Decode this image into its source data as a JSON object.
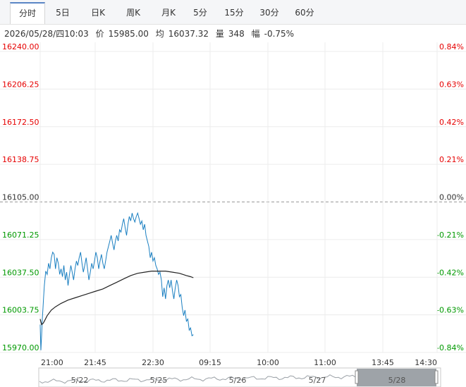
{
  "tabs": [
    {
      "label": "分时",
      "active": true
    },
    {
      "label": "5日",
      "active": false
    },
    {
      "label": "日K",
      "active": false
    },
    {
      "label": "周K",
      "active": false
    },
    {
      "label": "月K",
      "active": false
    },
    {
      "label": "5分",
      "active": false
    },
    {
      "label": "15分",
      "active": false
    },
    {
      "label": "30分",
      "active": false
    },
    {
      "label": "60分",
      "active": false
    }
  ],
  "info": {
    "datetime": "2026/05/28/四10:03",
    "price_label": "价",
    "price": "15985.00",
    "avg_label": "均",
    "avg": "16037.32",
    "vol_label": "量",
    "vol": "348",
    "change_label": "幅",
    "change": "-0.75%"
  },
  "colors": {
    "up": "#e60000",
    "down": "#009900",
    "base": "#333333",
    "price_line": "#1a7fc1",
    "avg_line": "#222222",
    "grid": "#ececec"
  },
  "chart_data": {
    "type": "line",
    "y_ticks": [
      "16240.00",
      "16206.25",
      "16172.50",
      "16138.75",
      "16105.00",
      "16071.25",
      "16037.50",
      "16003.75",
      "15970.00"
    ],
    "pct_ticks": [
      "0.84%",
      "0.63%",
      "0.42%",
      "0.21%",
      "0.00%",
      "-0.21%",
      "-0.42%",
      "-0.63%",
      "-0.84%"
    ],
    "base_price": 16105.0,
    "ylim": [
      15970.0,
      16240.0
    ],
    "x_ticks": [
      "21:00",
      "21:45",
      "22:30",
      "09:15",
      "10:00",
      "11:00",
      "13:45",
      "14:30"
    ],
    "total_minutes": 570,
    "series": [
      {
        "points": [
          [
            0,
            15995
          ],
          [
            1,
            15972
          ],
          [
            2,
            15985
          ],
          [
            3,
            16000
          ],
          [
            4,
            16010
          ],
          [
            5,
            16020
          ],
          [
            6,
            16030
          ],
          [
            8,
            16043
          ],
          [
            10,
            16040
          ],
          [
            12,
            16050
          ],
          [
            14,
            16045
          ],
          [
            16,
            16055
          ],
          [
            18,
            16060
          ],
          [
            20,
            16058
          ],
          [
            22,
            16045
          ],
          [
            24,
            16055
          ],
          [
            26,
            16050
          ],
          [
            28,
            16040
          ],
          [
            30,
            16045
          ],
          [
            32,
            16038
          ],
          [
            34,
            16048
          ],
          [
            36,
            16035
          ],
          [
            38,
            16042
          ],
          [
            40,
            16030
          ],
          [
            42,
            16040
          ],
          [
            44,
            16048
          ],
          [
            46,
            16042
          ],
          [
            48,
            16035
          ],
          [
            50,
            16045
          ],
          [
            52,
            16052
          ],
          [
            54,
            16048
          ],
          [
            56,
            16055
          ],
          [
            58,
            16060
          ],
          [
            60,
            16050
          ],
          [
            62,
            16042
          ],
          [
            64,
            16048
          ],
          [
            66,
            16055
          ],
          [
            68,
            16045
          ],
          [
            70,
            16035
          ],
          [
            72,
            16042
          ],
          [
            74,
            16050
          ],
          [
            76,
            16045
          ],
          [
            78,
            16052
          ],
          [
            80,
            16060
          ],
          [
            82,
            16055
          ],
          [
            84,
            16045
          ],
          [
            86,
            16052
          ],
          [
            88,
            16058
          ],
          [
            90,
            16050
          ],
          [
            92,
            16045
          ],
          [
            94,
            16052
          ],
          [
            96,
            16060
          ],
          [
            98,
            16065
          ],
          [
            100,
            16070
          ],
          [
            102,
            16075
          ],
          [
            104,
            16068
          ],
          [
            106,
            16062
          ],
          [
            108,
            16070
          ],
          [
            110,
            16075
          ],
          [
            112,
            16070
          ],
          [
            114,
            16080
          ],
          [
            116,
            16078
          ],
          [
            118,
            16085
          ],
          [
            120,
            16090
          ],
          [
            122,
            16082
          ],
          [
            124,
            16075
          ],
          [
            126,
            16085
          ],
          [
            128,
            16092
          ],
          [
            130,
            16088
          ],
          [
            132,
            16095
          ],
          [
            134,
            16090
          ],
          [
            136,
            16087
          ],
          [
            138,
            16092
          ],
          [
            140,
            16095
          ],
          [
            142,
            16090
          ],
          [
            144,
            16085
          ],
          [
            146,
            16088
          ],
          [
            148,
            16080
          ],
          [
            150,
            16085
          ],
          [
            152,
            16075
          ],
          [
            154,
            16070
          ],
          [
            156,
            16065
          ],
          [
            158,
            16055
          ],
          [
            160,
            16060
          ],
          [
            162,
            16052
          ],
          [
            164,
            16055
          ],
          [
            166,
            16048
          ],
          [
            168,
            16045
          ],
          [
            170,
            16040
          ],
          [
            172,
            16042
          ],
          [
            174,
            16035
          ],
          [
            176,
            16020
          ],
          [
            178,
            16028
          ],
          [
            180,
            16018
          ],
          [
            182,
            16030
          ],
          [
            184,
            16035
          ],
          [
            186,
            16028
          ],
          [
            188,
            16035
          ],
          [
            190,
            16025
          ],
          [
            192,
            16018
          ],
          [
            194,
            16028
          ],
          [
            196,
            16035
          ],
          [
            198,
            16030
          ],
          [
            200,
            16020
          ],
          [
            202,
            16022
          ],
          [
            204,
            16010
          ],
          [
            206,
            16003
          ],
          [
            208,
            16008
          ],
          [
            210,
            15998
          ],
          [
            212,
            16000
          ],
          [
            214,
            15990
          ],
          [
            216,
            15992
          ],
          [
            218,
            15985
          ],
          [
            220,
            15986
          ]
        ]
      },
      {
        "points": [
          [
            0,
            16000
          ],
          [
            2,
            15995
          ],
          [
            4,
            15996
          ],
          [
            6,
            15998
          ],
          [
            10,
            16003
          ],
          [
            16,
            16008
          ],
          [
            22,
            16011
          ],
          [
            30,
            16014
          ],
          [
            40,
            16017
          ],
          [
            50,
            16019
          ],
          [
            60,
            16021
          ],
          [
            70,
            16023
          ],
          [
            80,
            16025
          ],
          [
            90,
            16027
          ],
          [
            100,
            16030
          ],
          [
            110,
            16033
          ],
          [
            120,
            16036
          ],
          [
            130,
            16039
          ],
          [
            140,
            16041
          ],
          [
            150,
            16042
          ],
          [
            160,
            16043
          ],
          [
            170,
            16043
          ],
          [
            180,
            16043
          ],
          [
            190,
            16042
          ],
          [
            200,
            16041
          ],
          [
            210,
            16039
          ],
          [
            216,
            16038
          ],
          [
            220,
            16037
          ]
        ]
      }
    ],
    "navigator_dates": [
      "5/22",
      "5/25",
      "5/26",
      "5/27",
      "5/28"
    ]
  }
}
